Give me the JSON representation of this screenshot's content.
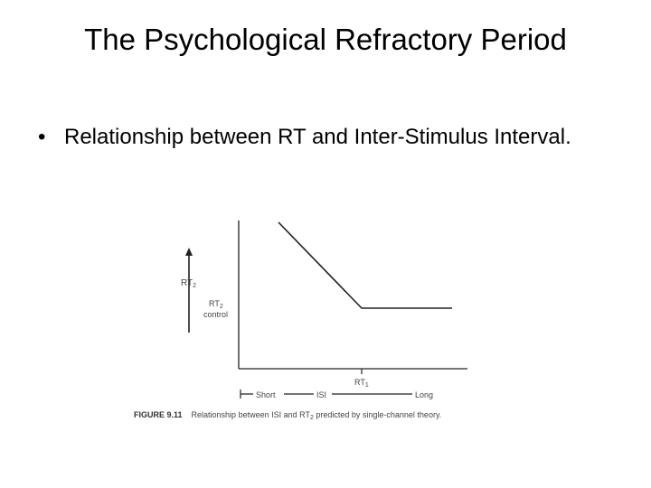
{
  "slide": {
    "title": "The Psychological Refractory Period",
    "bullet_symbol": "•",
    "bullet_text": "Relationship between RT and Inter-Stimulus Interval."
  },
  "figure": {
    "y_axis_label": "RT",
    "y_axis_label_sub": "2",
    "control_label_line1": "RT",
    "control_label_sub": "2",
    "control_label_line2": "control",
    "marker_label": "RT",
    "marker_label_sub": "1",
    "x_short_label": "Short",
    "x_isi_label": "ISI",
    "x_long_label": "Long",
    "caption_figure": "FIGURE 9.11",
    "caption_text_part1": "Relationship between ISI and RT",
    "caption_text_sub": "2",
    "caption_text_part2": " predicted by single-channel theory."
  },
  "chart_data": {
    "type": "line",
    "title": "",
    "xlabel": "ISI",
    "ylabel": "RT2",
    "x_axis_ends": [
      "Short",
      "Long"
    ],
    "marked_x": "RT1",
    "marked_y": "RT2 control",
    "series": [
      {
        "shape": "decreasing slope until ISI = RT1, then flat at RT2 control level"
      }
    ]
  }
}
